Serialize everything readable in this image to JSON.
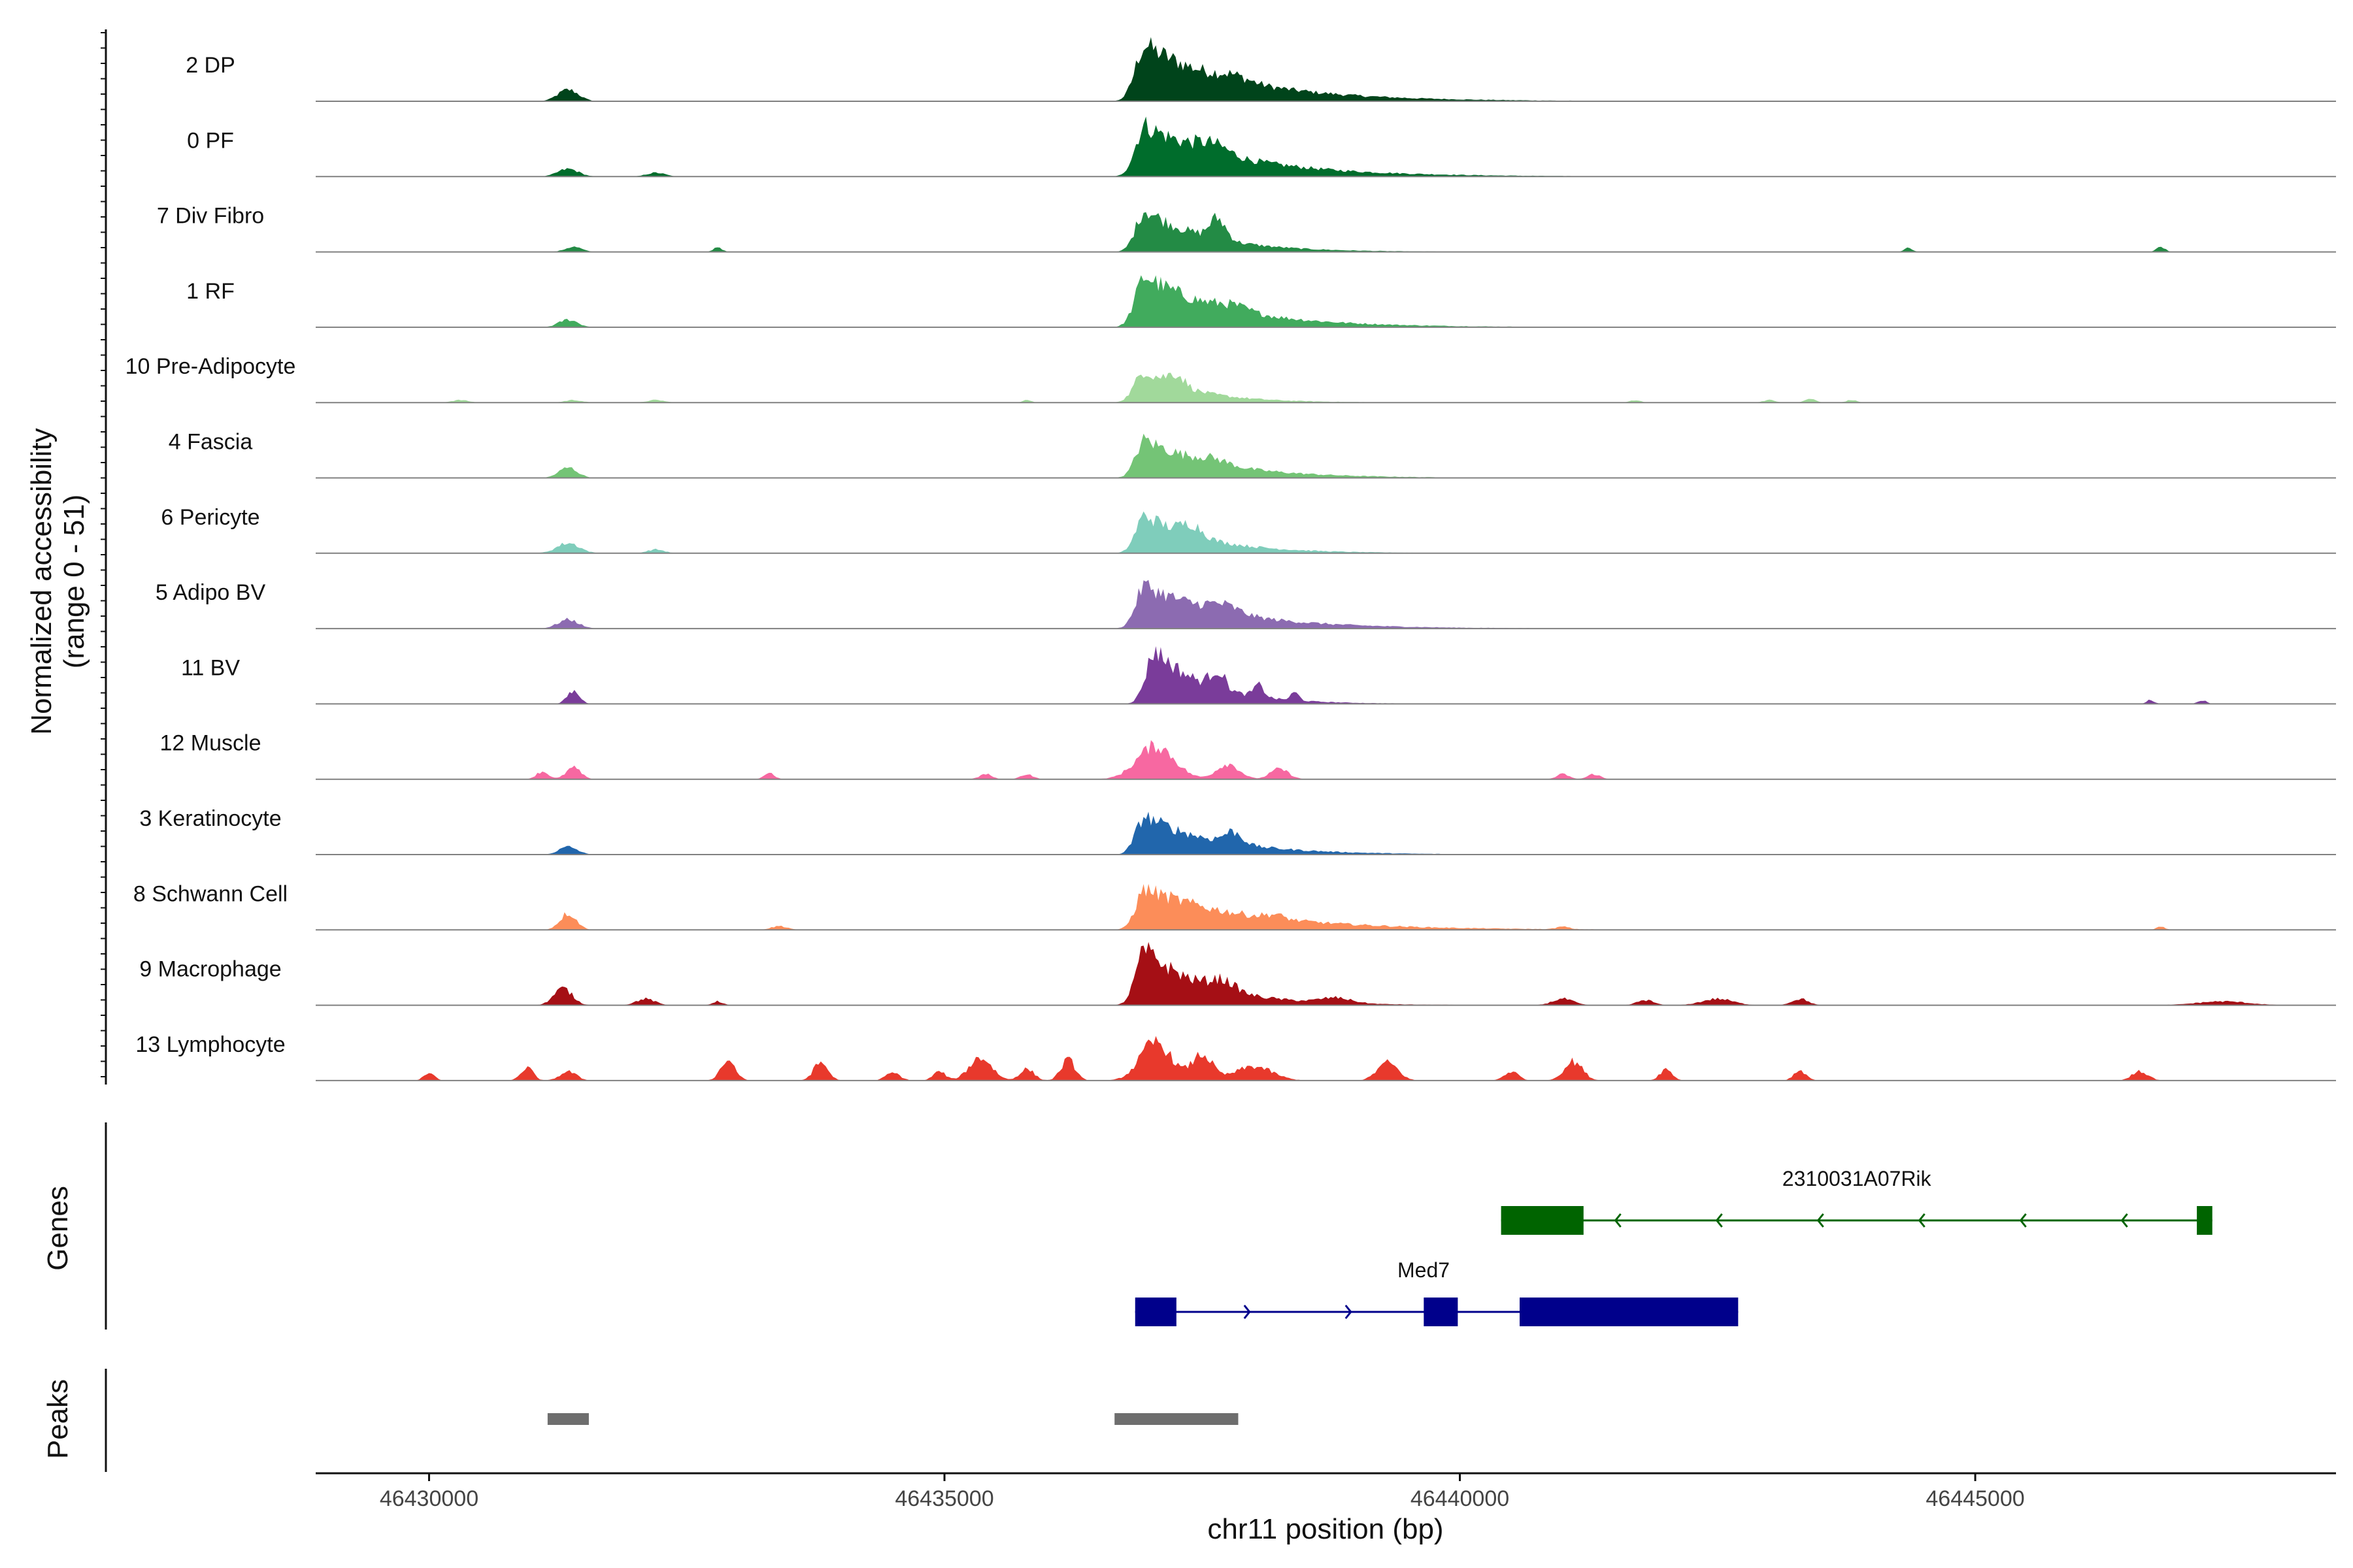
{
  "chart_data": {
    "type": "area",
    "xlabel": "chr11 position (bp)",
    "ylabel": "Normalized accessibility",
    "ylabel_range": "(range 0 - 51)",
    "ylim": [
      0,
      51
    ],
    "xlim": [
      46428900,
      46448500
    ],
    "x_ticks": [
      46430000,
      46435000,
      46440000,
      46445000
    ],
    "x_tick_labels": [
      "46430000",
      "46435000",
      "46440000",
      "46445000"
    ],
    "section_labels": {
      "genes": "Genes",
      "peaks": "Peaks"
    },
    "series": [
      {
        "name": "2 DP",
        "color": "#00441b",
        "peaks": [
          [
            46436950,
            44,
            95,
            900
          ],
          [
            46431350,
            9,
            100,
            0
          ],
          [
            46437800,
            4,
            150,
            0
          ]
        ]
      },
      {
        "name": "0 PF",
        "color": "#006d2c",
        "peaks": [
          [
            46436950,
            40,
            95,
            900
          ],
          [
            46431350,
            6,
            100,
            0
          ],
          [
            46437600,
            7,
            150,
            0
          ],
          [
            46432200,
            3,
            90,
            0
          ]
        ]
      },
      {
        "name": "7 Div Fibro",
        "color": "#238b45",
        "peaks": [
          [
            46436950,
            33,
            90,
            600
          ],
          [
            46437650,
            16,
            80,
            0
          ],
          [
            46431400,
            4,
            80,
            0
          ],
          [
            46432800,
            4,
            40,
            0
          ],
          [
            46444350,
            3,
            40,
            0
          ],
          [
            46446800,
            4,
            40,
            0
          ]
        ]
      },
      {
        "name": "1 RF",
        "color": "#41ab5d",
        "peaks": [
          [
            46436950,
            40,
            95,
            800
          ],
          [
            46431350,
            6,
            90,
            0
          ],
          [
            46437800,
            4,
            150,
            0
          ]
        ]
      },
      {
        "name": "10 Pre-Adipocyte",
        "color": "#a1d99b",
        "peaks": [
          [
            46436950,
            25,
            100,
            500
          ],
          [
            46437250,
            9,
            80,
            0
          ],
          [
            46430300,
            2,
            80,
            0
          ],
          [
            46431400,
            2,
            80,
            0
          ],
          [
            46432200,
            2,
            80,
            0
          ],
          [
            46435800,
            2,
            40,
            0
          ],
          [
            46441700,
            2,
            50,
            0
          ],
          [
            46443000,
            2,
            60,
            0
          ],
          [
            46443400,
            3,
            50,
            0
          ],
          [
            46443800,
            2,
            50,
            0
          ]
        ]
      },
      {
        "name": "4 Fascia",
        "color": "#74c476",
        "peaks": [
          [
            46436950,
            30,
            90,
            700
          ],
          [
            46431350,
            8,
            90,
            0
          ],
          [
            46437600,
            4,
            150,
            0
          ]
        ]
      },
      {
        "name": "6 Pericyte",
        "color": "#7fcdbb",
        "peaks": [
          [
            46436950,
            30,
            90,
            600
          ],
          [
            46437400,
            9,
            100,
            0
          ],
          [
            46431350,
            8,
            110,
            0
          ],
          [
            46432200,
            3,
            80,
            0
          ]
        ]
      },
      {
        "name": "5 Adipo BV",
        "color": "#8c6bb1",
        "peaks": [
          [
            46436950,
            34,
            90,
            800
          ],
          [
            46437700,
            6,
            150,
            0
          ],
          [
            46431350,
            7,
            100,
            0
          ]
        ]
      },
      {
        "name": "11 BV",
        "color": "#7a3c9a",
        "peaks": [
          [
            46437050,
            42,
            90,
            500
          ],
          [
            46437650,
            14,
            70,
            0
          ],
          [
            46438050,
            9,
            50,
            0
          ],
          [
            46438400,
            6,
            40,
            0
          ],
          [
            46431400,
            10,
            60,
            0
          ],
          [
            46446700,
            3,
            40,
            0
          ],
          [
            46447200,
            3,
            40,
            0
          ]
        ]
      },
      {
        "name": "12 Muscle",
        "color": "#f768a1",
        "peaks": [
          [
            46437050,
            26,
            180,
            0
          ],
          [
            46437750,
            12,
            110,
            0
          ],
          [
            46438250,
            8,
            90,
            0
          ],
          [
            46431100,
            6,
            60,
            0
          ],
          [
            46431400,
            9,
            70,
            0
          ],
          [
            46433300,
            5,
            50,
            0
          ],
          [
            46435400,
            4,
            60,
            0
          ],
          [
            46435800,
            4,
            60,
            0
          ],
          [
            46441000,
            4,
            60,
            0
          ],
          [
            46441300,
            4,
            60,
            0
          ]
        ]
      },
      {
        "name": "3 Keratinocyte",
        "color": "#2166ac",
        "peaks": [
          [
            46436950,
            30,
            90,
            700
          ],
          [
            46437800,
            9,
            90,
            0
          ],
          [
            46431350,
            6,
            90,
            0
          ]
        ]
      },
      {
        "name": "8 Schwann Cell",
        "color": "#fc8d59",
        "peaks": [
          [
            46436950,
            32,
            90,
            1000
          ],
          [
            46431350,
            13,
            80,
            0
          ],
          [
            46433400,
            3,
            80,
            0
          ],
          [
            46438200,
            3,
            90,
            0
          ],
          [
            46441000,
            2,
            60,
            0
          ],
          [
            46446800,
            3,
            40,
            0
          ]
        ]
      },
      {
        "name": "9 Macrophage",
        "color": "#a50f15",
        "peaks": [
          [
            46436950,
            43,
            90,
            600
          ],
          [
            46437700,
            8,
            120,
            0
          ],
          [
            46431300,
            13,
            90,
            0
          ],
          [
            46432100,
            5,
            90,
            0
          ],
          [
            46432800,
            3,
            50,
            0
          ],
          [
            46438800,
            4,
            150,
            0
          ],
          [
            46441000,
            5,
            100,
            0
          ],
          [
            46441800,
            4,
            80,
            0
          ],
          [
            46442500,
            5,
            150,
            0
          ],
          [
            46443300,
            5,
            80,
            0
          ],
          [
            46447400,
            3,
            250,
            0
          ]
        ]
      },
      {
        "name": "13 Lymphocyte",
        "color": "#e8392c",
        "peaks": [
          [
            46437050,
            30,
            150,
            0
          ],
          [
            46437500,
            20,
            100,
            0
          ],
          [
            46430000,
            6,
            50,
            0
          ],
          [
            46430950,
            10,
            60,
            0
          ],
          [
            46431350,
            7,
            80,
            0
          ],
          [
            46432900,
            16,
            70,
            0
          ],
          [
            46433800,
            14,
            70,
            0
          ],
          [
            46434500,
            6,
            70,
            0
          ],
          [
            46434950,
            7,
            60,
            0
          ],
          [
            46435350,
            18,
            110,
            0
          ],
          [
            46435800,
            9,
            70,
            0
          ],
          [
            46436200,
            16,
            70,
            0
          ],
          [
            46438000,
            11,
            180,
            0
          ],
          [
            46439300,
            14,
            100,
            0
          ],
          [
            46440500,
            7,
            70,
            0
          ],
          [
            46441100,
            15,
            90,
            0
          ],
          [
            46442000,
            9,
            60,
            0
          ],
          [
            46443300,
            8,
            60,
            0
          ],
          [
            46446600,
            7,
            80,
            0
          ]
        ]
      }
    ],
    "genes": [
      {
        "name": "2310031A07Rik",
        "strand": "-",
        "color": "#006400",
        "start": 46440400,
        "end": 46447300,
        "exons": [
          [
            46440400,
            46441200
          ],
          [
            46447150,
            46447300
          ]
        ]
      },
      {
        "name": "Med7",
        "strand": "+",
        "color": "#00008b",
        "start": 46436850,
        "end": 46442700,
        "exons": [
          [
            46436850,
            46437250
          ],
          [
            46439650,
            46439980
          ],
          [
            46440580,
            46442700
          ]
        ]
      }
    ],
    "peak_regions": [
      [
        46431150,
        46431550
      ],
      [
        46436650,
        46437850
      ]
    ]
  }
}
